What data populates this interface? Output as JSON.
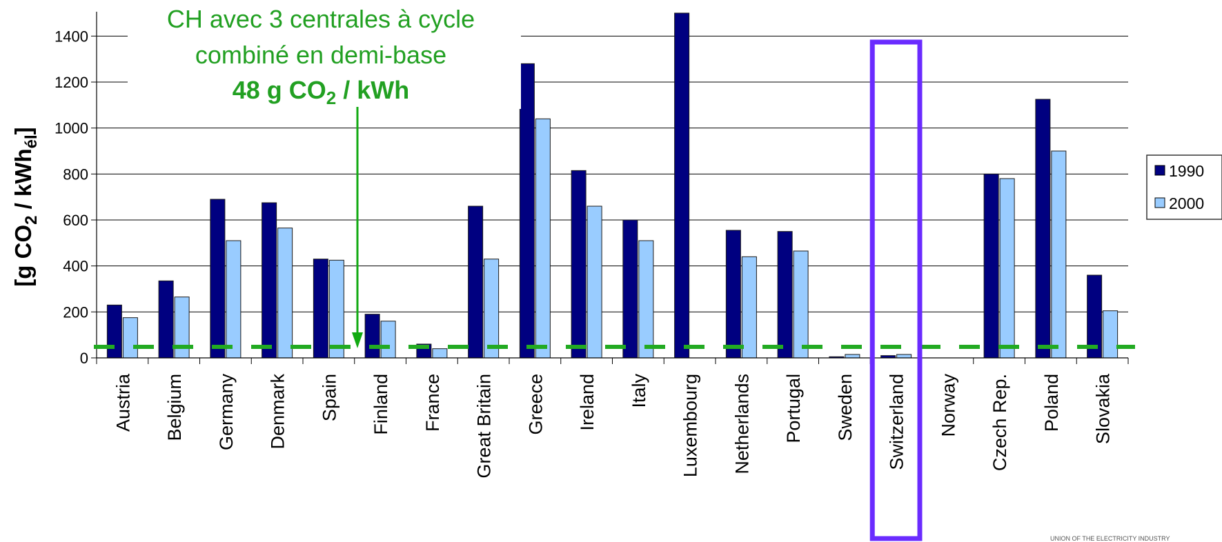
{
  "chart_data": {
    "type": "bar",
    "ylabel": {
      "prefix": "[g CO",
      "sub1": "2",
      "mid": " / kWh",
      "sub2": "él",
      "suffix": "]"
    },
    "ylim": [
      0,
      1500
    ],
    "yticks": [
      0,
      200,
      400,
      600,
      800,
      1000,
      1200,
      1400
    ],
    "grid": true,
    "legend": "right",
    "categories": [
      "Austria",
      "Belgium",
      "Germany",
      "Denmark",
      "Spain",
      "Finland",
      "France",
      "Great Britain",
      "Greece",
      "Ireland",
      "Italy",
      "Luxembourg",
      "Netherlands",
      "Portugal",
      "Sweden",
      "Switzerland",
      "Norway",
      "Czech Rep.",
      "Poland",
      "Slovakia"
    ],
    "series": [
      {
        "name": "1990",
        "color": "#000080",
        "values": [
          230,
          335,
          690,
          675,
          430,
          190,
          60,
          660,
          1280,
          815,
          600,
          1500,
          555,
          550,
          5,
          10,
          0,
          800,
          1125,
          360
        ]
      },
      {
        "name": "2000",
        "color": "#99ccff",
        "values": [
          175,
          265,
          510,
          565,
          425,
          160,
          40,
          430,
          1040,
          660,
          510,
          0,
          440,
          465,
          15,
          15,
          0,
          780,
          900,
          205
        ]
      }
    ],
    "reference_line": {
      "value": 48,
      "color": "#22aa22"
    },
    "highlight": {
      "category": "Switzerland",
      "color": "#6a2bff"
    },
    "annotation": {
      "line1": "CH avec 3 centrales à cycle",
      "line2": "combiné en demi-base",
      "bold_prefix": "48 g CO",
      "bold_sub": "2",
      "bold_suffix": " / kWh"
    },
    "footer": "UNION OF THE ELECTRICITY INDUSTRY"
  }
}
